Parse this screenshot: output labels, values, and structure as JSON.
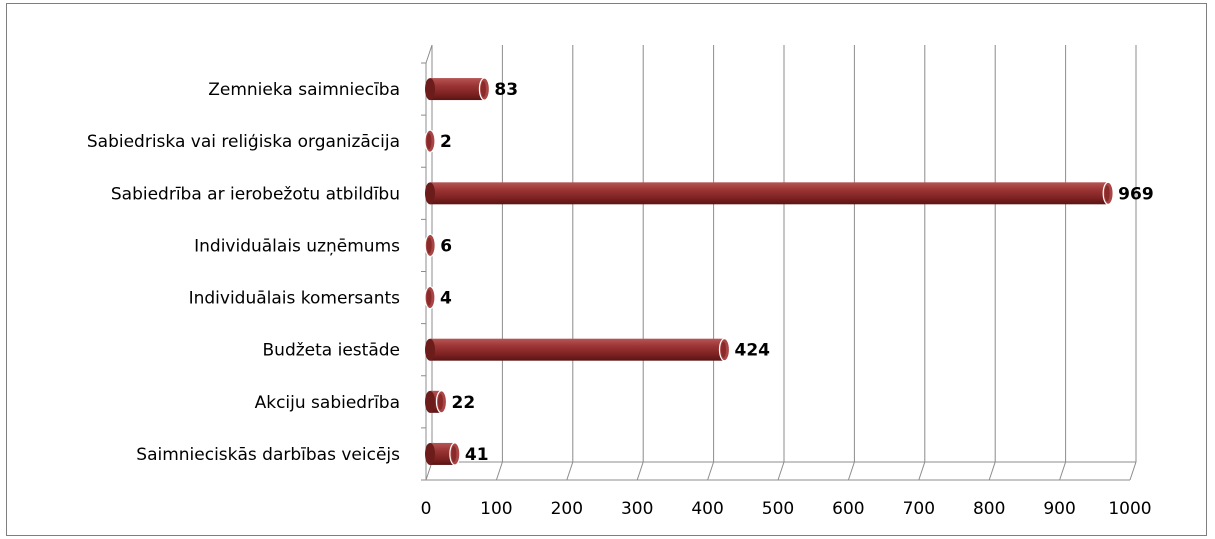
{
  "chart_data": {
    "type": "bar",
    "orientation": "horizontal",
    "style": "3d-cylinder",
    "categories": [
      "Zemnieka saimniecība",
      "Sabiedriska vai reliģiska organizācija",
      "Sabiedrība ar ierobežotu atbildību",
      "Individuālais uzņēmums",
      "Individuālais komersants",
      "Budžeta iestāde",
      "Akciju sabiedrība",
      "Saimnieciskās darbības veicējs"
    ],
    "values": [
      83,
      2,
      969,
      6,
      4,
      424,
      22,
      41
    ],
    "data_labels": [
      "83",
      "2",
      "969",
      "6",
      "4",
      "424",
      "22",
      "41"
    ],
    "xlim": [
      0,
      1000
    ],
    "x_ticks": [
      0,
      100,
      200,
      300,
      400,
      500,
      600,
      700,
      800,
      900,
      1000
    ],
    "x_tick_labels": [
      "0",
      "100",
      "200",
      "300",
      "400",
      "500",
      "600",
      "700",
      "800",
      "900",
      "1000"
    ],
    "grid": true,
    "legend": "none",
    "title": "",
    "xlabel": "",
    "ylabel": "",
    "colors": {
      "bar": "#8b2a2a",
      "bar_highlight": "#c46a6a",
      "bar_dark": "#5e1717",
      "gridline": "#8c8c8c"
    }
  }
}
